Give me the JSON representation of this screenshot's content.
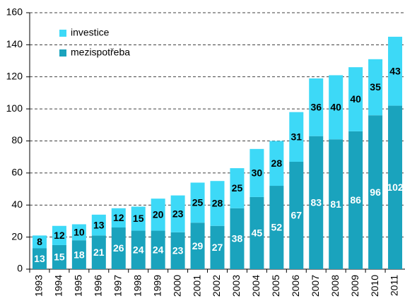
{
  "chart_data": {
    "type": "bar",
    "stacked": true,
    "categories": [
      "1993",
      "1994",
      "1995",
      "1996",
      "1997",
      "1998",
      "1999",
      "2000",
      "2001",
      "2002",
      "2003",
      "2004",
      "2005",
      "2006",
      "2007",
      "2008",
      "2009",
      "2010",
      "2011"
    ],
    "series": [
      {
        "name": "mezispotřeba",
        "color": "#1aa3bd",
        "label_color": "#ffffff",
        "values": [
          13,
          15,
          18,
          21,
          26,
          24,
          24,
          23,
          29,
          27,
          38,
          45,
          52,
          67,
          83,
          81,
          86,
          96,
          102
        ]
      },
      {
        "name": "investice",
        "color": "#3dd9f7",
        "label_color": "#000000",
        "values": [
          8,
          12,
          10,
          13,
          12,
          15,
          20,
          23,
          25,
          28,
          25,
          30,
          28,
          31,
          36,
          40,
          40,
          35,
          43
        ]
      }
    ],
    "ylim": [
      0,
      160
    ],
    "yticks": [
      0,
      20,
      40,
      60,
      80,
      100,
      120,
      140,
      160
    ],
    "grid": true,
    "legend": "upper left"
  }
}
